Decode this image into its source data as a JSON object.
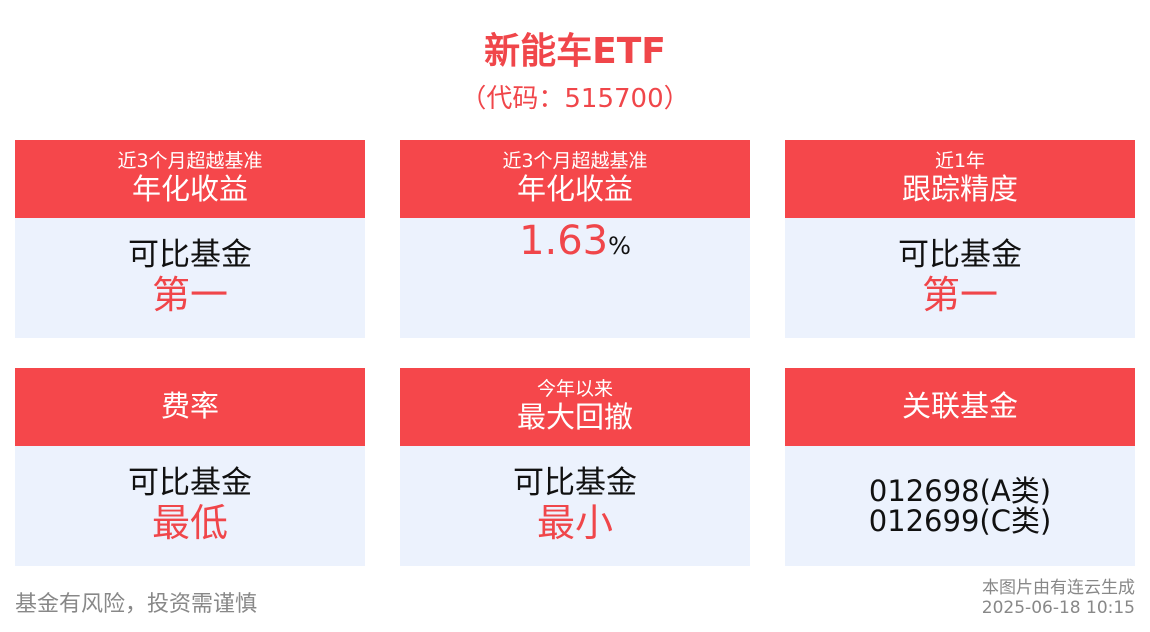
{
  "header": {
    "title": "新能车ETF",
    "subtitle": "（代码：515700）"
  },
  "cards": [
    {
      "header": [
        "近3个月超越基准",
        "年化收益"
      ],
      "body": [
        "可比基金",
        "第一"
      ]
    },
    {
      "header": [
        "近3个月超越基准",
        "年化收益"
      ],
      "body": {
        "value": 1.63,
        "unit": "%"
      }
    },
    {
      "header": [
        "近1年",
        "跟踪精度"
      ],
      "body": [
        "可比基金",
        "第一"
      ]
    },
    {
      "header": [
        "费率"
      ],
      "body": [
        "可比基金",
        "最低"
      ]
    },
    {
      "header": [
        "今年以来",
        "最大回撤"
      ],
      "body": [
        "可比基金",
        "最小"
      ]
    },
    {
      "header": [
        "关联基金"
      ],
      "body": [
        "012698(A类)",
        "012699(C类)"
      ]
    }
  ],
  "footer": {
    "disclaimer": "基金有风险，投资需谨慎",
    "source": "本图片由有连云生成",
    "timestamp": "2025-06-18 10:15"
  }
}
